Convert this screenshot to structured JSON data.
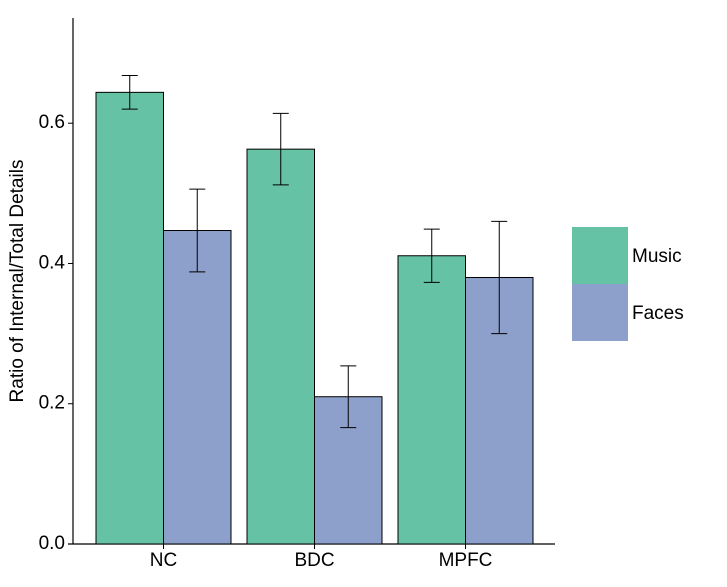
{
  "chart_data": {
    "type": "bar",
    "y_label": "Ratio of Internal/Total Details",
    "categories": [
      "NC",
      "BDC",
      "MPFC"
    ],
    "series": [
      {
        "name": "Music",
        "color": "#66c2a5",
        "values": [
          0.644,
          0.563,
          0.411
        ],
        "errors": [
          0.024,
          0.051,
          0.038
        ]
      },
      {
        "name": "Faces",
        "color": "#8da0cb",
        "values": [
          0.447,
          0.21,
          0.38
        ],
        "errors": [
          0.059,
          0.044,
          0.08
        ]
      }
    ],
    "ylim": [
      0,
      0.75
    ],
    "yticks": [
      {
        "value": 0,
        "label": "0.0"
      },
      0.2,
      0.4,
      0.6
    ],
    "grid": false,
    "legend": "right"
  }
}
